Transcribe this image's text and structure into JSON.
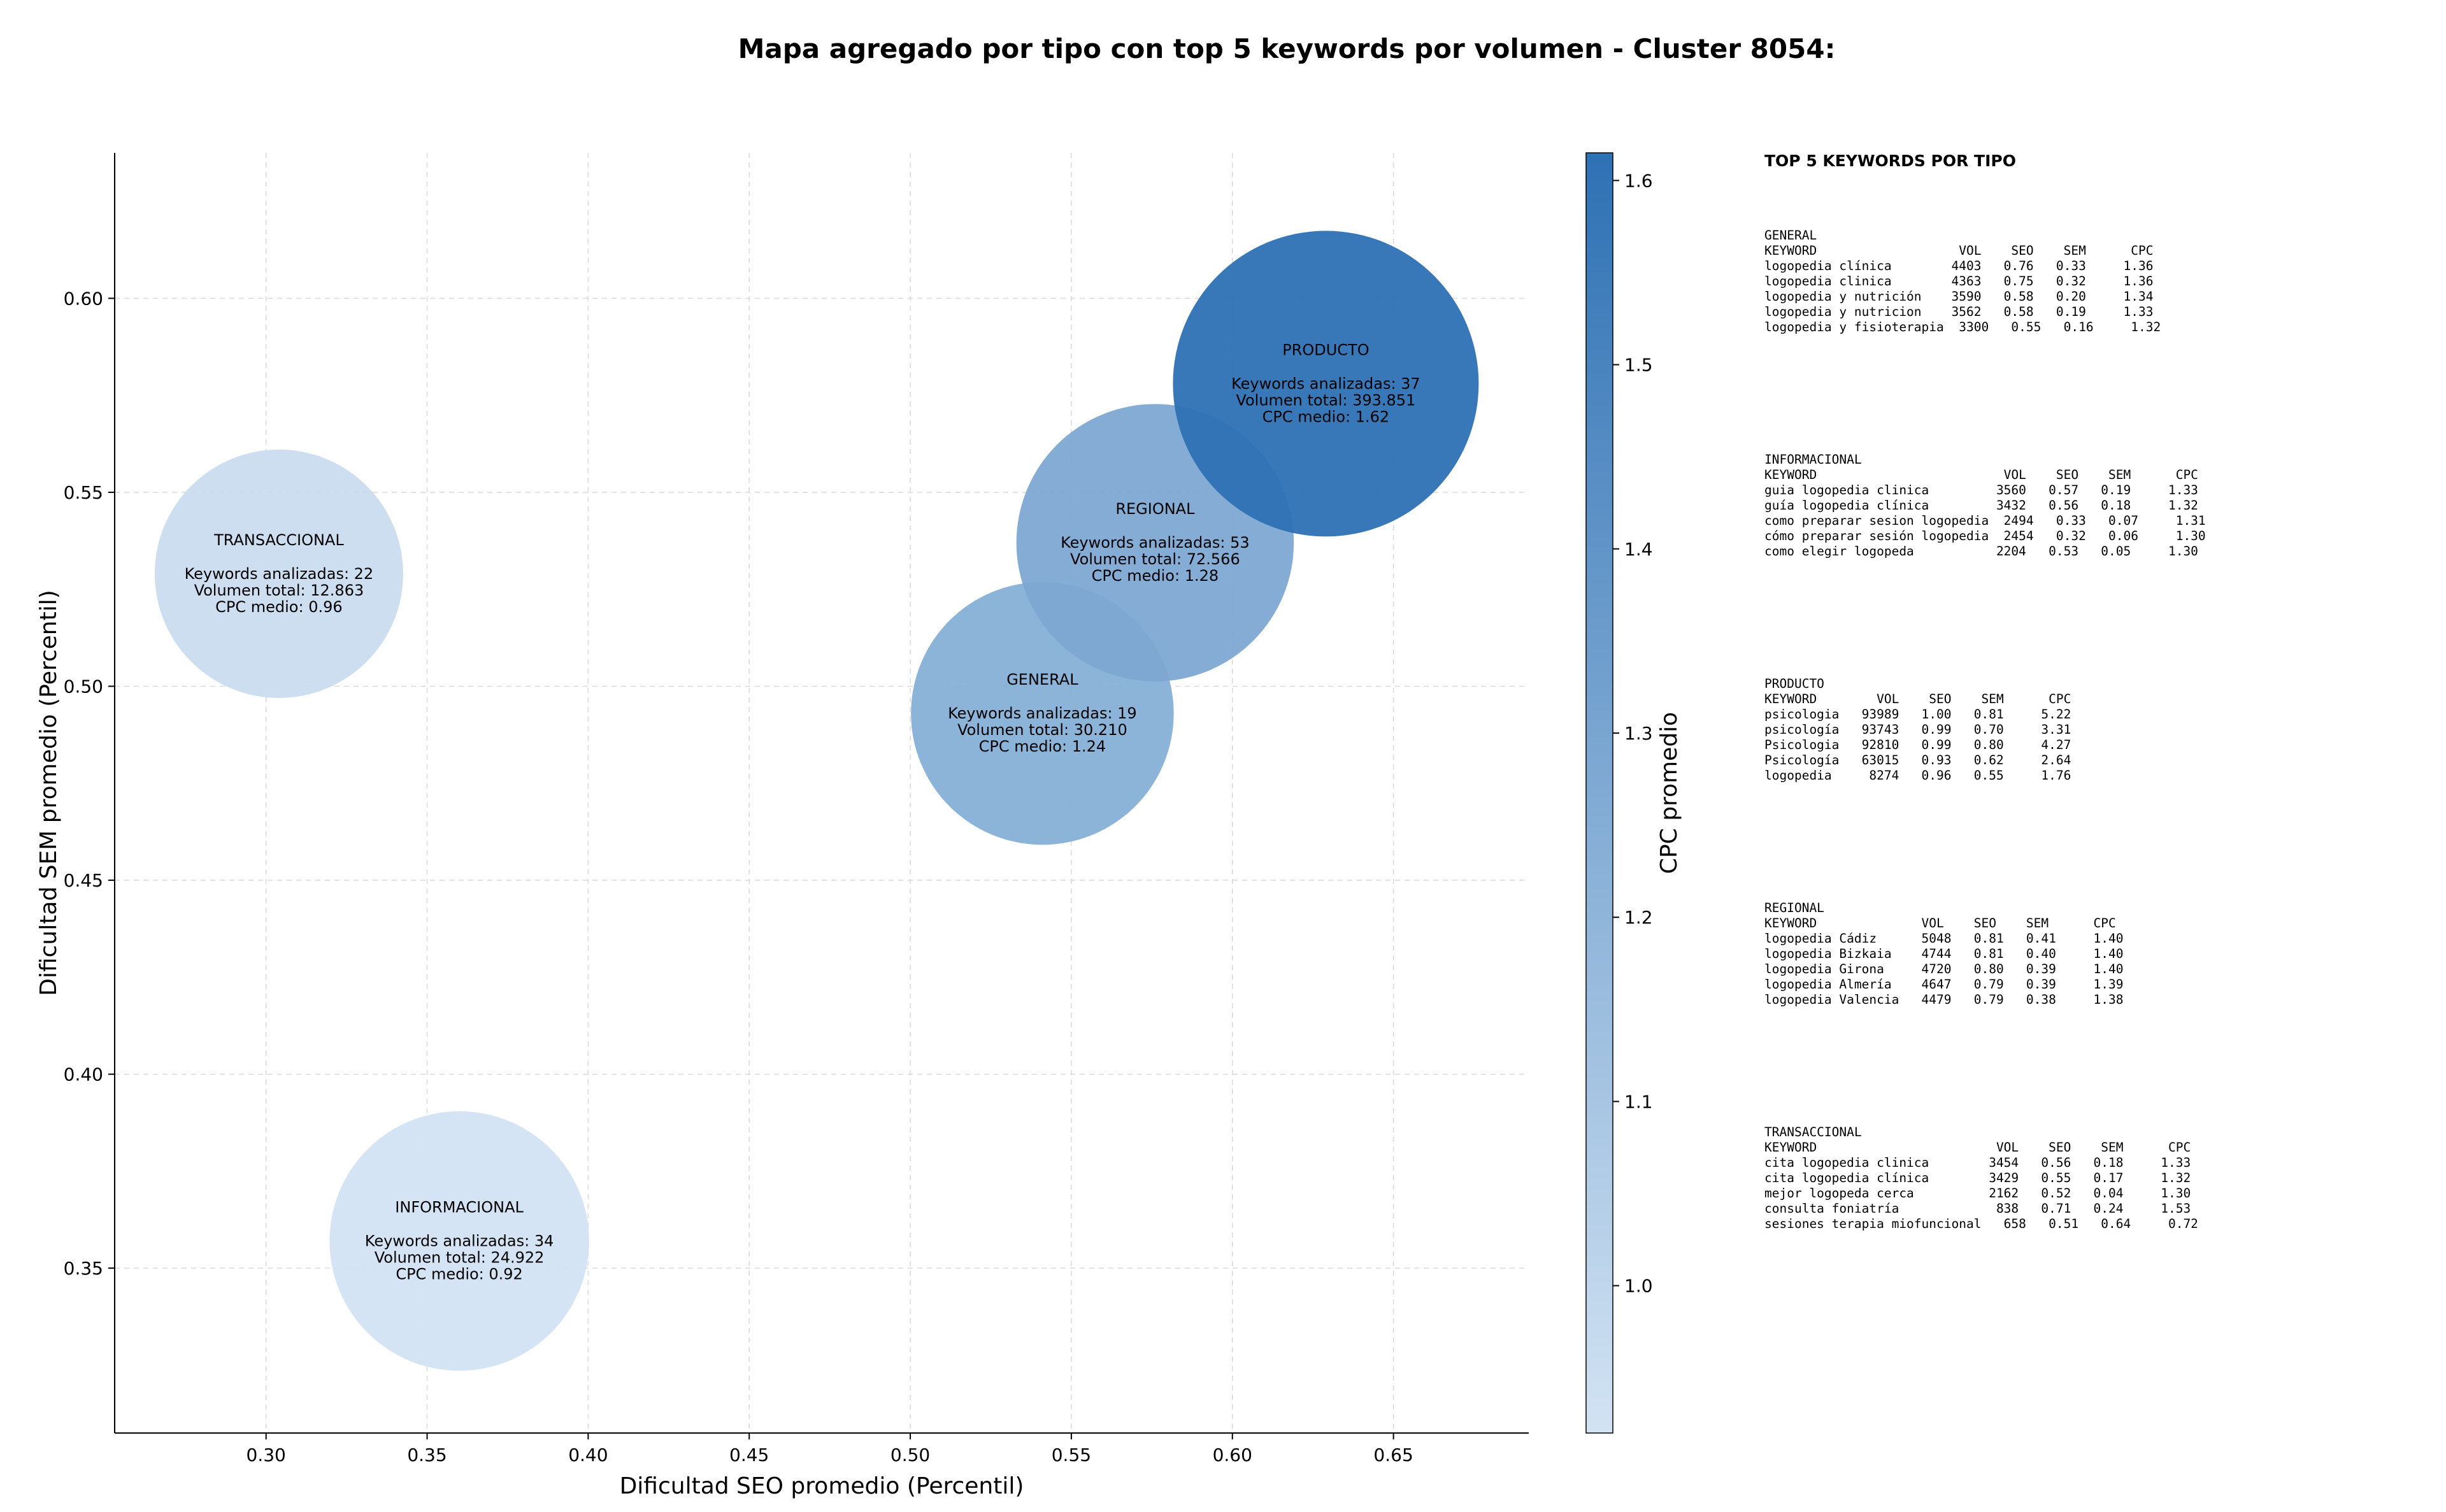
{
  "title": "Mapa agregado por tipo con top 5 keywords por volumen - Cluster 8054:",
  "chart_data": {
    "type": "scatter",
    "xlabel": "Dificultad SEO promedio (Percentil)",
    "ylabel": "Dificultad SEM promedio (Percentil)",
    "xlim": [
      0.253,
      0.692
    ],
    "ylim": [
      0.3075,
      0.6375
    ],
    "xticks": [
      0.3,
      0.35,
      0.4,
      0.45,
      0.5,
      0.55,
      0.6,
      0.65
    ],
    "yticks": [
      0.35,
      0.4,
      0.45,
      0.5,
      0.55,
      0.6
    ],
    "grid": true,
    "colorbar": {
      "label": "CPC promedio",
      "range": [
        0.92,
        1.615
      ],
      "ticks": [
        1.0,
        1.1,
        1.2,
        1.3,
        1.4,
        1.5,
        1.6
      ],
      "color_low": "#d2e3f3",
      "color_high": "#2e71b4"
    },
    "points": [
      {
        "tipo": "TRANSACCIONAL",
        "x": 0.304,
        "y": 0.529,
        "keywords": 22,
        "volumen": "12.863",
        "cpc": 0.96,
        "lines": [
          "Keywords analizadas: 22",
          "Volumen total: 12.863",
          "CPC medio: 0.96"
        ]
      },
      {
        "tipo": "INFORMACIONAL",
        "x": 0.36,
        "y": 0.357,
        "keywords": 34,
        "volumen": "24.922",
        "cpc": 0.92,
        "lines": [
          "Keywords analizadas: 34",
          "Volumen total: 24.922",
          "CPC medio: 0.92"
        ]
      },
      {
        "tipo": "GENERAL",
        "x": 0.541,
        "y": 0.493,
        "keywords": 19,
        "volumen": "30.210",
        "cpc": 1.24,
        "lines": [
          "Keywords analizadas: 19",
          "Volumen total: 30.210",
          "CPC medio: 1.24"
        ]
      },
      {
        "tipo": "REGIONAL",
        "x": 0.576,
        "y": 0.537,
        "keywords": 53,
        "volumen": "72.566",
        "cpc": 1.28,
        "lines": [
          "Keywords analizadas: 53",
          "Volumen total: 72.566",
          "CPC medio: 1.28"
        ]
      },
      {
        "tipo": "PRODUCTO",
        "x": 0.629,
        "y": 0.578,
        "keywords": 37,
        "volumen": "393.851",
        "cpc": 1.62,
        "lines": [
          "Keywords analizadas: 37",
          "Volumen total: 393.851",
          "CPC medio: 1.62"
        ]
      }
    ]
  },
  "panel": {
    "title": "TOP 5 KEYWORDS POR TIPO",
    "blocks": [
      {
        "name": "GENERAL",
        "text": "GENERAL\nKEYWORD                   VOL    SEO    SEM      CPC\nlogopedia clínica        4403   0.76   0.33     1.36\nlogopedia clinica        4363   0.75   0.32     1.36\nlogopedia y nutrición    3590   0.58   0.20     1.34\nlogopedia y nutricion    3562   0.58   0.19     1.33\nlogopedia y fisioterapia  3300   0.55   0.16     1.32"
      },
      {
        "name": "INFORMACIONAL",
        "text": "INFORMACIONAL\nKEYWORD                         VOL    SEO    SEM      CPC\nguia logopedia clinica         3560   0.57   0.19     1.33\nguía logopedia clínica         3432   0.56   0.18     1.32\ncomo preparar sesion logopedia  2494   0.33   0.07     1.31\ncómo preparar sesión logopedia  2454   0.32   0.06     1.30\ncomo elegir logopeda           2204   0.53   0.05     1.30"
      },
      {
        "name": "PRODUCTO",
        "text": "PRODUCTO\nKEYWORD        VOL    SEO    SEM      CPC\npsicologia   93989   1.00   0.81     5.22\npsicología   93743   0.99   0.70     3.31\nPsicologia   92810   0.99   0.80     4.27\nPsicología   63015   0.93   0.62     2.64\nlogopedia     8274   0.96   0.55     1.76"
      },
      {
        "name": "REGIONAL",
        "text": "REGIONAL\nKEYWORD              VOL    SEO    SEM      CPC\nlogopedia Cádiz      5048   0.81   0.41     1.40\nlogopedia Bizkaia    4744   0.81   0.40     1.40\nlogopedia Girona     4720   0.80   0.39     1.40\nlogopedia Almería    4647   0.79   0.39     1.39\nlogopedia Valencia   4479   0.79   0.38     1.38"
      },
      {
        "name": "TRANSACCIONAL",
        "text": "TRANSACCIONAL\nKEYWORD                        VOL    SEO    SEM      CPC\ncita logopedia clinica        3454   0.56   0.18     1.33\ncita logopedia clínica        3429   0.55   0.17     1.32\nmejor logopeda cerca          2162   0.52   0.04     1.30\nconsulta foniatría             838   0.71   0.24     1.53\nsesiones terapia miofuncional   658   0.51   0.64     0.72"
      }
    ]
  }
}
